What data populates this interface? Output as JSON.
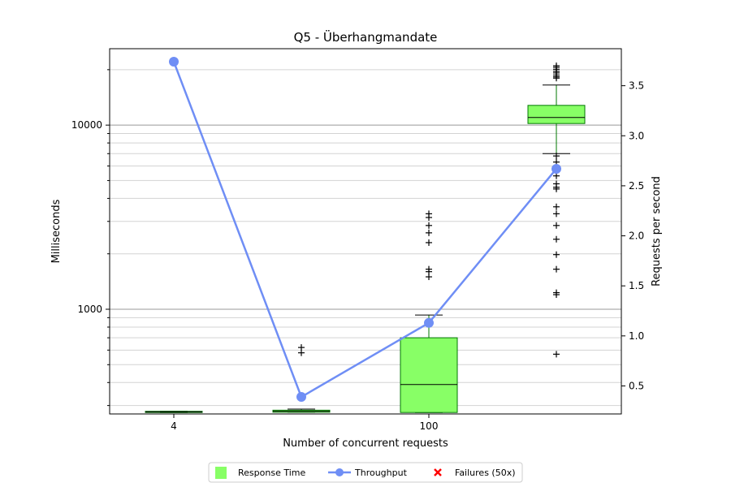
{
  "chart_data": {
    "type": "box",
    "title": "Q5 - Überhangmandate",
    "xlabel": "Number of concurrent requests",
    "ylabel_left": "Milliseconds",
    "ylabel_right": "Requests per second",
    "y_left_scale": "log",
    "y_left_range": [
      270,
      26000
    ],
    "y_left_ticks": [
      {
        "value": 1000,
        "label": "1000"
      },
      {
        "value": 10000,
        "label": "10000"
      }
    ],
    "y_right_range": [
      0.22,
      3.87
    ],
    "y_right_ticks": [
      {
        "value": 0.5,
        "label": "0.5"
      },
      {
        "value": 1.0,
        "label": "1.0"
      },
      {
        "value": 1.5,
        "label": "1.5"
      },
      {
        "value": 2.0,
        "label": "2.0"
      },
      {
        "value": 2.5,
        "label": "2.5"
      },
      {
        "value": 3.0,
        "label": "3.0"
      },
      {
        "value": 3.5,
        "label": "3.5"
      }
    ],
    "categories": [
      "4",
      "",
      "100",
      ""
    ],
    "boxes": [
      {
        "q1": 275,
        "median": 277,
        "q3": 279,
        "whisker_low": 275,
        "whisker_high": 279,
        "outliers": []
      },
      {
        "q1": 276,
        "median": 279,
        "q3": 283,
        "whisker_low": 276,
        "whisker_high": 287,
        "outliers": [
          580,
          620
        ]
      },
      {
        "q1": 275,
        "median": 390,
        "q3": 700,
        "whisker_low": 275,
        "whisker_high": 930,
        "outliers": [
          1500,
          1600,
          1650,
          2300,
          2600,
          2850,
          3150,
          3300
        ]
      },
      {
        "q1": 10200,
        "median": 11000,
        "q3": 12800,
        "whisker_low": 7000,
        "whisker_high": 16500,
        "outliers": [
          570,
          1200,
          1230,
          1650,
          1980,
          2400,
          2850,
          3300,
          3600,
          4500,
          4600,
          4800,
          5300,
          5800,
          6300,
          6800,
          18000,
          18300,
          18700,
          19200,
          19600,
          20100,
          20600,
          21000
        ]
      }
    ],
    "throughput": {
      "name": "Throughput",
      "values": [
        3.74,
        0.39,
        1.13,
        2.67
      ]
    },
    "legend": {
      "placement": "bottom-center",
      "items": [
        {
          "label": "Response Time",
          "color": "#88ff66",
          "marker": "square"
        },
        {
          "label": "Throughput",
          "color": "#6f8ef5",
          "marker": "line-circle"
        },
        {
          "label": "Failures (50x)",
          "color": "#ff0000",
          "marker": "x"
        }
      ]
    },
    "colors": {
      "box_fill": "#88ff66",
      "box_edge": "#007700",
      "median": "#000000",
      "throughput": "#6f8ef5",
      "grid_major": "#999999",
      "grid_minor": "#d3d3d3"
    }
  }
}
